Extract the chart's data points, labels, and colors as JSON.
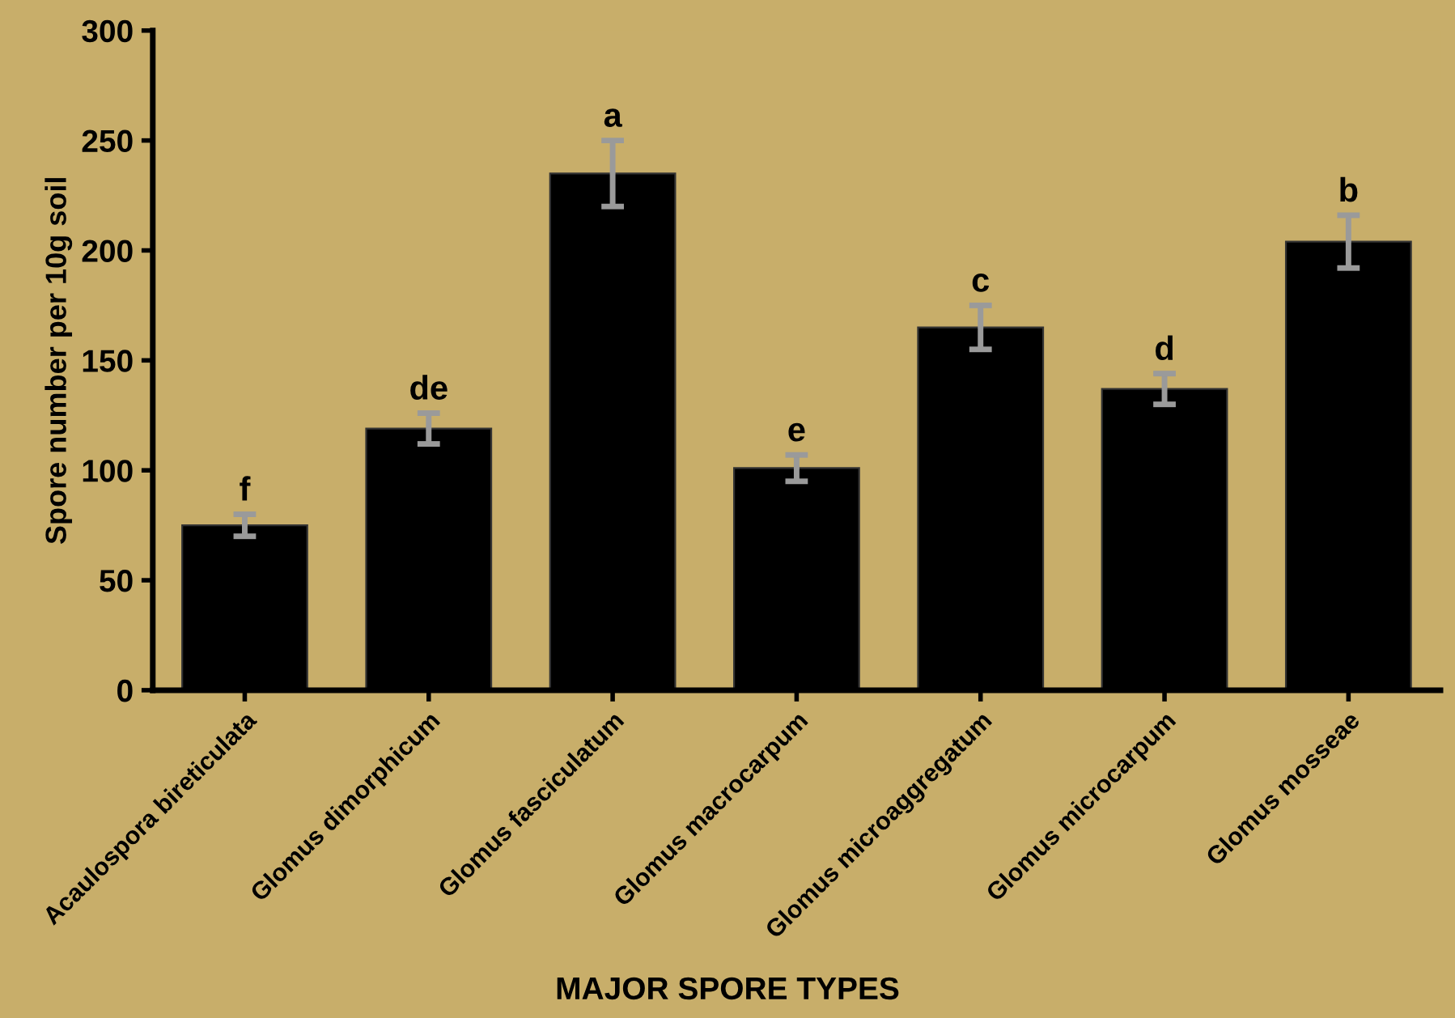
{
  "chart_data": {
    "type": "bar",
    "ylabel": "Spore number per 10g soil",
    "xlabel": "MAJOR SPORE TYPES",
    "categories": [
      "Acaulospora bireticulata",
      "Glomus dimorphicum",
      "Glomus fasciculatum",
      "Glomus macrocarpum",
      "Glomus microaggregatum",
      "Glomus microcarpum",
      "Glomus mosseae"
    ],
    "values": [
      75,
      119,
      235,
      101,
      165,
      137,
      204
    ],
    "errors": [
      5,
      7,
      15,
      6,
      10,
      7,
      12
    ],
    "color": "#000000",
    "ylim": [
      0,
      300
    ],
    "yticks": [
      0,
      50,
      100,
      150,
      200,
      250,
      300
    ],
    "grid": false,
    "annotations": [
      {
        "text": "f",
        "x": "Acaulospora bireticulata",
        "y": 80
      },
      {
        "text": "de",
        "x": "Glomus dimorphicum",
        "y": 126
      },
      {
        "text": "a",
        "x": "Glomus fasciculatum",
        "y": 250
      },
      {
        "text": "e",
        "x": "Glomus macrocarpum",
        "y": 107
      },
      {
        "text": "c",
        "x": "Glomus microaggregatum",
        "y": 175
      },
      {
        "text": "d",
        "x": "Glomus microcarpum",
        "y": 144
      },
      {
        "text": "b",
        "x": "Glomus mosseae",
        "y": 216
      }
    ]
  }
}
